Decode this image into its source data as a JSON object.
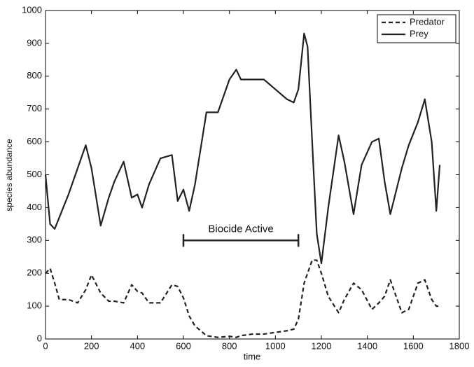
{
  "chart_data": {
    "type": "line",
    "xlabel": "time",
    "ylabel": "species abundance",
    "xlim": [
      0,
      1800
    ],
    "xticks": [
      0,
      200,
      400,
      600,
      800,
      1000,
      1200,
      1400,
      1600,
      1800
    ],
    "ylim": [
      0,
      1000
    ],
    "yticks": [
      0,
      100,
      200,
      300,
      400,
      500,
      600,
      700,
      800,
      900,
      1000
    ],
    "legend": "upper right",
    "x": [
      0,
      20,
      40,
      60,
      100,
      140,
      175,
      200,
      240,
      275,
      300,
      340,
      375,
      400,
      420,
      450,
      500,
      550,
      575,
      600,
      625,
      650,
      700,
      750,
      800,
      830,
      850,
      900,
      950,
      1000,
      1050,
      1080,
      1100,
      1125,
      1140,
      1160,
      1180,
      1200,
      1230,
      1275,
      1300,
      1340,
      1375,
      1420,
      1450,
      1475,
      1500,
      1550,
      1580,
      1620,
      1650,
      1680,
      1700,
      1715
    ],
    "series": [
      {
        "name": "Predator",
        "color": "#222222",
        "dash": true,
        "values": [
          200,
          215,
          170,
          120,
          120,
          110,
          150,
          195,
          140,
          115,
          115,
          110,
          165,
          145,
          140,
          110,
          110,
          165,
          160,
          125,
          70,
          40,
          10,
          5,
          8,
          5,
          10,
          15,
          15,
          20,
          25,
          30,
          60,
          170,
          200,
          240,
          240,
          200,
          130,
          80,
          120,
          170,
          150,
          90,
          110,
          130,
          180,
          80,
          90,
          170,
          180,
          120,
          100,
          100
        ]
      },
      {
        "name": "Prey",
        "color": "#222222",
        "dash": false,
        "values": [
          500,
          350,
          335,
          370,
          440,
          520,
          590,
          520,
          345,
          430,
          480,
          540,
          430,
          440,
          400,
          470,
          550,
          560,
          420,
          455,
          390,
          470,
          690,
          690,
          790,
          820,
          790,
          790,
          790,
          760,
          730,
          720,
          760,
          930,
          890,
          600,
          320,
          230,
          400,
          620,
          540,
          380,
          530,
          600,
          610,
          480,
          380,
          520,
          590,
          660,
          730,
          600,
          390,
          530
        ]
      }
    ],
    "annotations": [
      {
        "text": "Biocide Active",
        "x": [
          600,
          1100
        ],
        "y": 300
      }
    ]
  }
}
